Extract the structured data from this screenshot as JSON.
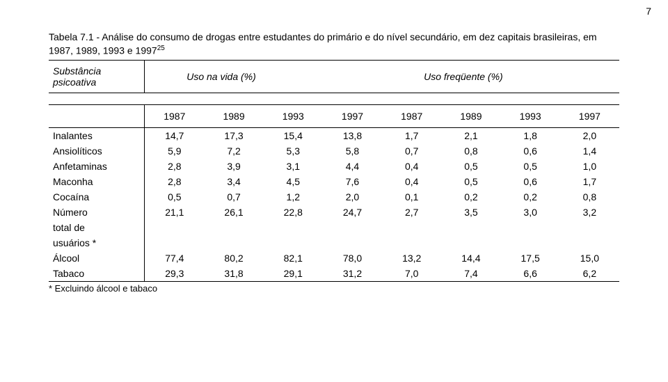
{
  "page_number": "7",
  "caption_prefix": "Tabela 7.1 - Análise do consumo de drogas entre estudantes do primário e do nível secundário, em dez capitais brasileiras, em 1987, 1989, 1993 e 1997",
  "caption_sup": "25",
  "header1": {
    "col_label": "Substância psicoativa",
    "span1": "Uso na vida (%)",
    "span2": "Uso freqüente (%)"
  },
  "years": [
    "1987",
    "1989",
    "1993",
    "1997",
    "1987",
    "1989",
    "1993",
    "1997"
  ],
  "rows": [
    {
      "label": "Inalantes",
      "v": [
        "14,7",
        "17,3",
        "15,4",
        "13,8",
        "1,7",
        "2,1",
        "1,8",
        "2,0"
      ]
    },
    {
      "label": "Ansiolíticos",
      "v": [
        "5,9",
        "7,2",
        "5,3",
        "5,8",
        "0,7",
        "0,8",
        "0,6",
        "1,4"
      ]
    },
    {
      "label": "Anfetaminas",
      "v": [
        "2,8",
        "3,9",
        "3,1",
        "4,4",
        "0,4",
        "0,5",
        "0,5",
        "1,0"
      ]
    },
    {
      "label": "Maconha",
      "v": [
        "2,8",
        "3,4",
        "4,5",
        "7,6",
        "0,4",
        "0,5",
        "0,6",
        "1,7"
      ]
    },
    {
      "label": "Cocaína",
      "v": [
        "0,5",
        "0,7",
        "1,2",
        "2,0",
        "0,1",
        "0,2",
        "0,2",
        "0,8"
      ]
    },
    {
      "label": "Número total de usuários *",
      "v": [
        "21,1",
        "26,1",
        "22,8",
        "24,7",
        "2,7",
        "3,5",
        "3,0",
        "3,2"
      ]
    },
    {
      "label": "Álcool",
      "v": [
        "77,4",
        "80,2",
        "82,1",
        "78,0",
        "13,2",
        "14,4",
        "17,5",
        "15,0"
      ]
    },
    {
      "label": "Tabaco",
      "v": [
        "29,3",
        "31,8",
        "29,1",
        "31,2",
        "7,0",
        "7,4",
        "6,6",
        "6,2"
      ]
    }
  ],
  "footnote": "* Excluindo álcool e tabaco"
}
